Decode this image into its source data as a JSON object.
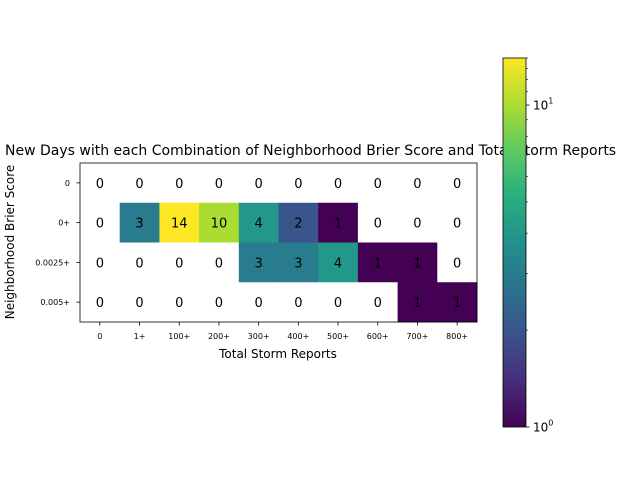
{
  "chart_data": {
    "type": "heatmap",
    "title": "New Days with each Combination of Neighborhood Brier Score and Total Storm Reports",
    "xlabel": "Total Storm Reports",
    "ylabel": "Neighborhood Brier Score",
    "x_categories": [
      "0",
      "1+",
      "100+",
      "200+",
      "300+",
      "400+",
      "500+",
      "600+",
      "700+",
      "800+"
    ],
    "y_categories": [
      "0",
      "0+",
      "0.0025+",
      "0.005+"
    ],
    "values": [
      [
        0,
        0,
        0,
        0,
        0,
        0,
        0,
        0,
        0,
        0
      ],
      [
        0,
        3,
        14,
        10,
        4,
        2,
        1,
        0,
        0,
        0
      ],
      [
        0,
        0,
        0,
        0,
        3,
        3,
        4,
        1,
        1,
        0
      ],
      [
        0,
        0,
        0,
        0,
        0,
        0,
        0,
        0,
        1,
        1
      ]
    ],
    "colormap": "viridis",
    "color_scale": "log",
    "zero_color": "#ffffff",
    "colorbar": {
      "range": [
        1,
        14
      ],
      "tick_labels": [
        {
          "value": 1,
          "base": "10",
          "exp": "0"
        },
        {
          "value": 10,
          "base": "10",
          "exp": "1"
        }
      ]
    },
    "grid": false
  }
}
